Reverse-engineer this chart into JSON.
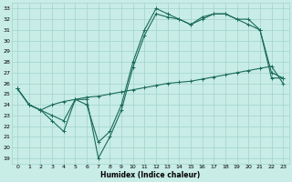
{
  "xlabel": "Humidex (Indice chaleur)",
  "ylabel": "",
  "background_color": "#c8ece6",
  "grid_color": "#a0d4cc",
  "line_color": "#1a6b5a",
  "ylim": [
    18.5,
    33.5
  ],
  "xlim": [
    -0.5,
    23.5
  ],
  "yticks": [
    19,
    20,
    21,
    22,
    23,
    24,
    25,
    26,
    27,
    28,
    29,
    30,
    31,
    32,
    33
  ],
  "xticks": [
    0,
    1,
    2,
    3,
    4,
    5,
    6,
    7,
    8,
    9,
    10,
    11,
    12,
    13,
    14,
    15,
    16,
    17,
    18,
    19,
    20,
    21,
    22,
    23
  ],
  "line1": [
    25.5,
    24.0,
    23.5,
    22.5,
    21.5,
    24.5,
    24.5,
    19.0,
    21.0,
    23.5,
    27.5,
    30.5,
    32.5,
    32.2,
    32.0,
    31.5,
    32.0,
    32.5,
    32.5,
    32.0,
    31.5,
    31.0,
    27.0,
    26.5
  ],
  "line2": [
    25.5,
    24.0,
    23.5,
    23.0,
    22.5,
    24.5,
    24.0,
    20.5,
    21.5,
    24.0,
    28.0,
    31.0,
    33.0,
    32.5,
    32.0,
    31.5,
    32.2,
    32.5,
    32.5,
    32.0,
    32.0,
    31.0,
    26.5,
    26.5
  ],
  "line3": [
    25.5,
    24.0,
    23.5,
    24.0,
    24.3,
    24.5,
    24.7,
    24.8,
    25.0,
    25.2,
    25.4,
    25.6,
    25.8,
    26.0,
    26.1,
    26.2,
    26.4,
    26.6,
    26.8,
    27.0,
    27.2,
    27.4,
    27.6,
    26.0
  ]
}
